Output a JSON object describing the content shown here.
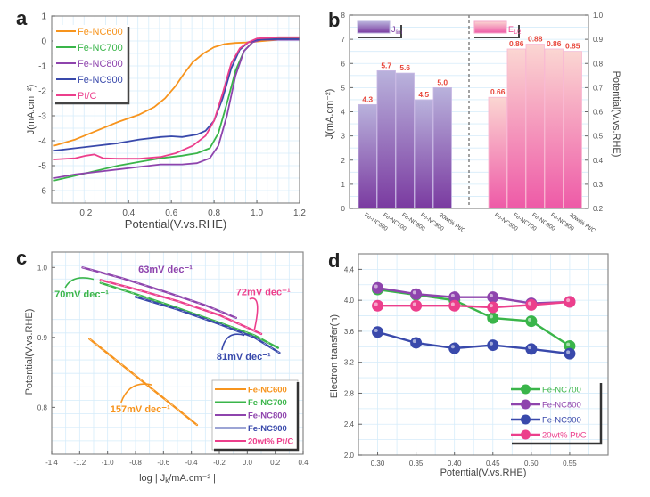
{
  "colors": {
    "Fe-NC600": "#f7941d",
    "Fe-NC700": "#3ab54a",
    "Fe-NC800": "#8e44ad",
    "Fe-NC900": "#3949ab",
    "Pt/C": "#ec3f8c",
    "grid": "#d6ecfa",
    "bar_label": "#e8463a"
  },
  "chart_data": [
    {
      "panel": "a",
      "type": "line",
      "xlabel": "Potential(V.vs.RHE)",
      "ylabel": "J(mA.cm⁻²)",
      "xlim": [
        0.04,
        1.2
      ],
      "ylim": [
        -6.5,
        1
      ],
      "xticks": [
        "0.2",
        "0.4",
        "0.6",
        "0.8",
        "1.0",
        "1.2"
      ],
      "xtick_values": [
        0.2,
        0.4,
        0.6,
        0.8,
        1.0,
        1.2
      ],
      "yticks": [
        "1",
        "0",
        "-1",
        "-2",
        "-3",
        "-4",
        "-5",
        "-6"
      ],
      "ytick_values": [
        1,
        0,
        -1,
        -2,
        -3,
        -4,
        -5,
        -6
      ],
      "grid": true,
      "legend_position": "top-left",
      "series": [
        {
          "name": "Fe-NC600",
          "x": [
            0.05,
            0.15,
            0.25,
            0.35,
            0.45,
            0.52,
            0.57,
            0.62,
            0.66,
            0.7,
            0.75,
            0.8,
            0.85,
            0.9,
            0.95,
            1.0,
            1.1,
            1.2
          ],
          "y": [
            -4.2,
            -3.95,
            -3.6,
            -3.25,
            -2.95,
            -2.65,
            -2.3,
            -1.8,
            -1.3,
            -0.85,
            -0.5,
            -0.25,
            -0.12,
            -0.08,
            -0.06,
            -0.02,
            0.05,
            0.06
          ]
        },
        {
          "name": "Fe-NC700",
          "x": [
            0.05,
            0.15,
            0.25,
            0.35,
            0.45,
            0.55,
            0.65,
            0.72,
            0.78,
            0.82,
            0.86,
            0.9,
            0.94,
            0.98,
            1.02,
            1.1,
            1.2
          ],
          "y": [
            -5.6,
            -5.4,
            -5.2,
            -5.0,
            -4.85,
            -4.7,
            -4.6,
            -4.5,
            -4.3,
            -3.7,
            -2.5,
            -1.2,
            -0.4,
            -0.05,
            0.1,
            0.12,
            0.12
          ]
        },
        {
          "name": "Fe-NC800",
          "x": [
            0.05,
            0.15,
            0.25,
            0.35,
            0.45,
            0.55,
            0.65,
            0.72,
            0.78,
            0.82,
            0.86,
            0.9,
            0.94,
            0.98,
            1.02,
            1.1,
            1.2
          ],
          "y": [
            -5.5,
            -5.35,
            -5.25,
            -5.15,
            -5.05,
            -4.95,
            -4.95,
            -4.9,
            -4.7,
            -4.2,
            -3.0,
            -1.4,
            -0.4,
            -0.05,
            0.05,
            0.05,
            0.05
          ]
        },
        {
          "name": "Fe-NC900",
          "x": [
            0.05,
            0.15,
            0.25,
            0.35,
            0.45,
            0.55,
            0.6,
            0.65,
            0.72,
            0.76,
            0.8,
            0.84,
            0.88,
            0.92,
            0.96,
            1.0,
            1.1,
            1.2
          ],
          "y": [
            -4.4,
            -4.3,
            -4.2,
            -4.1,
            -3.95,
            -3.85,
            -3.82,
            -3.85,
            -3.75,
            -3.6,
            -3.2,
            -2.3,
            -1.1,
            -0.35,
            -0.05,
            0.05,
            0.08,
            0.08
          ]
        },
        {
          "name": "Pt/C",
          "x": [
            0.05,
            0.15,
            0.2,
            0.24,
            0.28,
            0.35,
            0.45,
            0.55,
            0.62,
            0.7,
            0.76,
            0.8,
            0.84,
            0.88,
            0.92,
            0.96,
            1.0,
            1.1,
            1.2
          ],
          "y": [
            -4.75,
            -4.7,
            -4.6,
            -4.55,
            -4.7,
            -4.72,
            -4.72,
            -4.65,
            -4.5,
            -4.2,
            -3.8,
            -3.2,
            -2.1,
            -0.9,
            -0.3,
            -0.05,
            0.1,
            0.15,
            0.15
          ]
        }
      ]
    },
    {
      "panel": "b",
      "type": "bar",
      "ylabel_left": "J(mA.cm⁻²)",
      "ylabel_right": "Potential(V.vs.RHE)",
      "ylim_left": [
        0,
        8
      ],
      "ylim_right": [
        0.2,
        1.0
      ],
      "yticks_left": [
        "0",
        "1",
        "2",
        "3",
        "4",
        "5",
        "6",
        "7",
        "8"
      ],
      "ytick_values_left": [
        0,
        1,
        2,
        3,
        4,
        5,
        6,
        7,
        8
      ],
      "yticks_right": [
        "0.2",
        "0.3",
        "0.4",
        "0.5",
        "0.6",
        "0.7",
        "0.8",
        "0.9",
        "1.0"
      ],
      "ytick_values_right": [
        0.2,
        0.3,
        0.4,
        0.5,
        0.6,
        0.7,
        0.8,
        0.9,
        1.0
      ],
      "grid": true,
      "categories": [
        "Fe-NC600",
        "Fe-NC700",
        "Fe-NC800",
        "Fe-NC900",
        "20wt% Pt/C"
      ],
      "series": [
        {
          "name": "J_lim",
          "legend_label": "J",
          "legend_sub": "lim",
          "axis": "left",
          "values": [
            4.3,
            5.7,
            5.6,
            4.5,
            5.0
          ],
          "labels": [
            "4.3",
            "5.7",
            "5.6",
            "4.5",
            "5.0"
          ]
        },
        {
          "name": "E_1/2",
          "legend_label": "E",
          "legend_sub": "1/2",
          "axis": "right",
          "values": [
            0.66,
            0.86,
            0.88,
            0.86,
            0.85
          ],
          "labels": [
            "0.66",
            "0.86",
            "0.88",
            "0.86",
            "0.85"
          ]
        }
      ]
    },
    {
      "panel": "c",
      "type": "line",
      "xlabel": "log | J",
      "xlabel_sub": "k",
      "xlabel_tail": "/mA.cm⁻² |",
      "ylabel": "Potential(V.vs.RHE)",
      "xlim": [
        -1.4,
        0.4
      ],
      "ylim": [
        0.733,
        1.022
      ],
      "xticks": [
        "-1.4",
        "-1.2",
        "-1.0",
        "-0.8",
        "-0.6",
        "-0.4",
        "-0.2",
        "0.0",
        "0.2",
        "0.4"
      ],
      "xtick_values": [
        -1.4,
        -1.2,
        -1.0,
        -0.8,
        -0.6,
        -0.4,
        -0.2,
        0.0,
        0.2,
        0.4
      ],
      "yticks": [
        "1.0",
        "0.9",
        "0.8"
      ],
      "ytick_values": [
        1.0,
        0.9,
        0.8
      ],
      "grid": true,
      "legend_position": "bottom-right",
      "series": [
        {
          "name": "Fe-NC600",
          "legend": "Fe-NC600",
          "x": [
            -1.13,
            -0.36
          ],
          "y": [
            0.898,
            0.775
          ]
        },
        {
          "name": "Fe-NC700",
          "legend": "Fe-NC700",
          "x": [
            -1.05,
            -0.8,
            -0.5,
            -0.2,
            0.05,
            0.22
          ],
          "y": [
            0.978,
            0.962,
            0.942,
            0.921,
            0.903,
            0.885
          ]
        },
        {
          "name": "Fe-NC800",
          "legend": "Fe-NC800",
          "x": [
            -1.18,
            -0.9,
            -0.6,
            -0.3,
            -0.08
          ],
          "y": [
            1.0,
            0.985,
            0.966,
            0.946,
            0.928
          ]
        },
        {
          "name": "Fe-NC900",
          "legend": "Fe-NC900",
          "x": [
            -0.8,
            -0.5,
            -0.2,
            0.05,
            0.23
          ],
          "y": [
            0.958,
            0.94,
            0.919,
            0.9,
            0.878
          ]
        },
        {
          "name": "Pt/C",
          "legend": "20wt% Pt/C",
          "x": [
            -1.05,
            -0.8,
            -0.5,
            -0.2,
            0.1
          ],
          "y": [
            0.982,
            0.969,
            0.952,
            0.932,
            0.905
          ]
        }
      ],
      "annotations": [
        {
          "text": "63mV dec⁻¹",
          "series": "Fe-NC800",
          "x": -0.78,
          "y": 0.993
        },
        {
          "text": "70mV dec⁻¹",
          "series": "Fe-NC700",
          "x": -1.38,
          "y": 0.957
        },
        {
          "text": "72mV dec⁻¹",
          "series": "Pt/C",
          "x": -0.08,
          "y": 0.96
        },
        {
          "text": "81mV dec⁻¹",
          "series": "Fe-NC900",
          "x": -0.22,
          "y": 0.868
        },
        {
          "text": "157mV dec⁻¹",
          "series": "Fe-NC600",
          "x": -0.98,
          "y": 0.793
        }
      ]
    },
    {
      "panel": "d",
      "type": "line",
      "xlabel": "Potential(V.vs.RHE)",
      "ylabel": "Electron transfer(n)",
      "xlim": [
        0.275,
        0.6
      ],
      "ylim": [
        2.0,
        4.6
      ],
      "xticks": [
        "0.30",
        "0.35",
        "0.40",
        "0.45",
        "0.50",
        "0.55"
      ],
      "xtick_values": [
        0.3,
        0.35,
        0.4,
        0.45,
        0.5,
        0.55
      ],
      "yticks": [
        "2.0",
        "2.4",
        "2.8",
        "3.2",
        "3.6",
        "4.0",
        "4.4"
      ],
      "ytick_values": [
        2.0,
        2.4,
        2.8,
        3.2,
        3.6,
        4.0,
        4.4
      ],
      "grid": true,
      "legend_position": "bottom-right",
      "x": [
        0.3,
        0.35,
        0.4,
        0.45,
        0.5,
        0.55
      ],
      "series": [
        {
          "name": "Fe-NC700",
          "legend": "Fe-NC700",
          "values": [
            4.14,
            4.07,
            4.0,
            3.77,
            3.73,
            3.41
          ]
        },
        {
          "name": "Fe-NC800",
          "legend": "Fe-NC800",
          "values": [
            4.16,
            4.08,
            4.04,
            4.04,
            3.96,
            3.98
          ]
        },
        {
          "name": "Fe-NC900",
          "legend": "Fe-NC900",
          "values": [
            3.59,
            3.45,
            3.38,
            3.42,
            3.37,
            3.31
          ]
        },
        {
          "name": "Pt/C",
          "legend": "20wt% Pt/C",
          "values": [
            3.93,
            3.93,
            3.93,
            3.91,
            3.94,
            3.98
          ]
        }
      ]
    }
  ],
  "panel_letters": [
    "a",
    "b",
    "c",
    "d"
  ]
}
